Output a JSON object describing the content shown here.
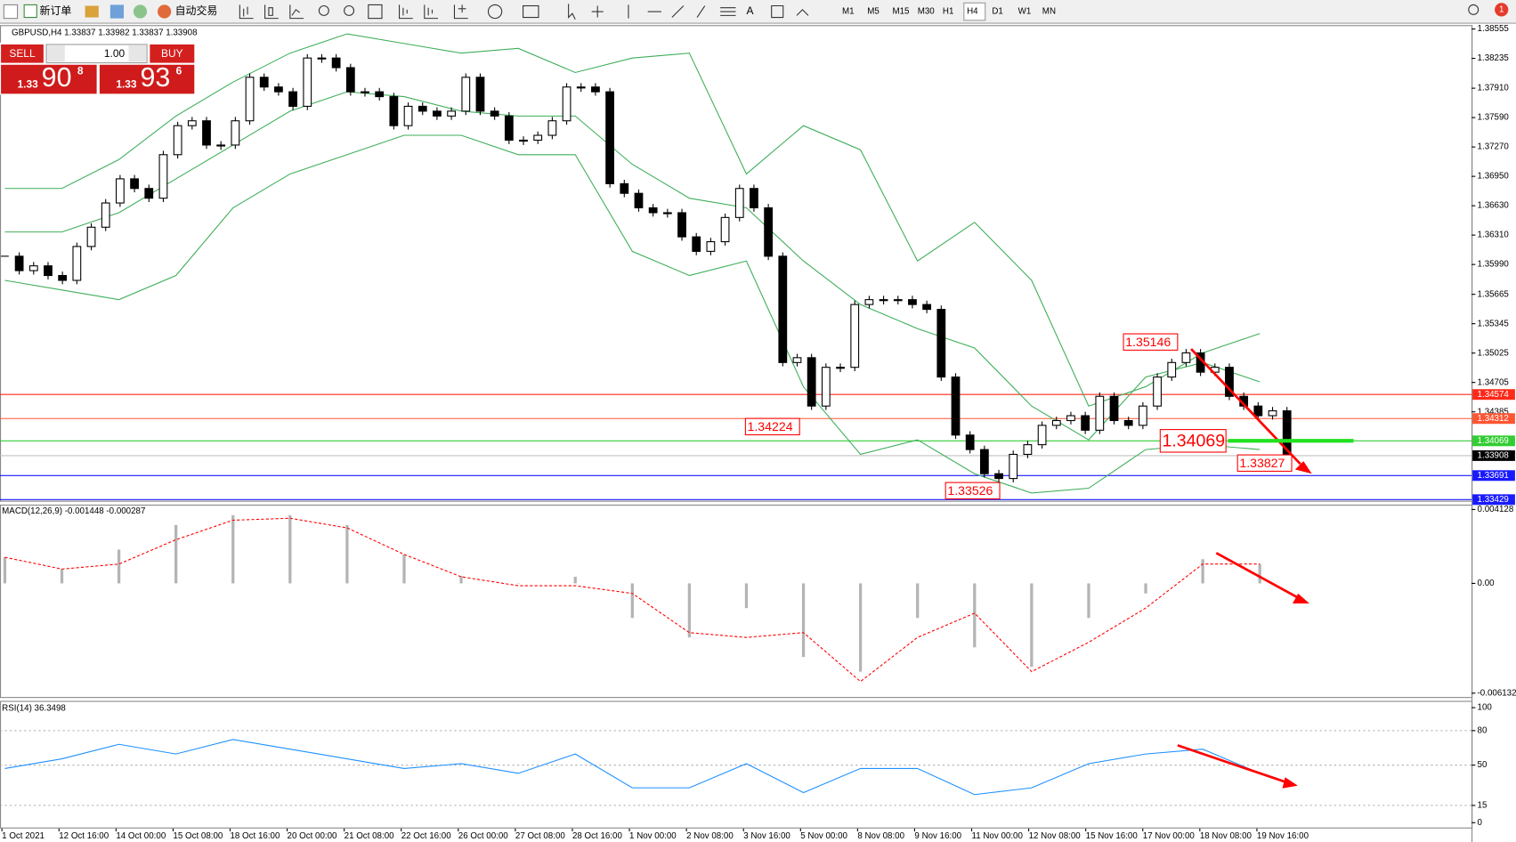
{
  "toolbar": {
    "new_order": "新订单",
    "auto_trading": "自动交易",
    "timeframes": [
      "M1",
      "M5",
      "M15",
      "M30",
      "H1",
      "H4",
      "D1",
      "W1",
      "MN"
    ],
    "active": "H4",
    "notifications": "1"
  },
  "symbol_header": "GBPUSD,H4  1.33837 1.33982 1.33837 1.33908",
  "trade_panel": {
    "sell": "SELL",
    "buy": "BUY",
    "lots": "1.00",
    "sell_price": {
      "prefix": "1.33",
      "big": "90",
      "sup": "8"
    },
    "buy_price": {
      "prefix": "1.33",
      "big": "93",
      "sup": "6"
    }
  },
  "chart_data": [
    {
      "type": "candlestick",
      "categories": [
        "1 Oct 2021",
        "12 Oct 16:00",
        "14 Oct 00:00",
        "15 Oct 08:00",
        "18 Oct 16:00",
        "20 Oct 00:00",
        "21 Oct 08:00",
        "22 Oct 16:00",
        "26 Oct 00:00",
        "27 Oct 08:00",
        "28 Oct 16:00",
        "1 Nov 00:00",
        "2 Nov 08:00",
        "3 Nov 16:00",
        "5 Nov 00:00",
        "8 Nov 08:00",
        "9 Nov 16:00",
        "11 Nov 00:00",
        "12 Nov 08:00",
        "15 Nov 16:00",
        "17 Nov 00:00",
        "18 Nov 08:00",
        "19 Nov 16:00"
      ],
      "closes": [
        1.3608,
        1.35923,
        1.35975,
        1.3587,
        1.35817,
        1.36186,
        1.36396,
        1.3666,
        1.36923,
        1.36818,
        1.36712,
        1.37186,
        1.37502,
        1.37555,
        1.37291,
        1.37291,
        1.37555,
        1.38029,
        1.37923,
        1.37871,
        1.37713,
        1.38239,
        1.38239,
        1.38134,
        1.37871,
        1.37871,
        1.37818,
        1.37502,
        1.37713,
        1.3766,
        1.37607,
        1.3766,
        1.38029,
        1.3766,
        1.37607,
        1.37344,
        1.37344,
        1.37397,
        1.37555,
        1.37923,
        1.37923,
        1.37871,
        1.3687,
        1.36765,
        1.36607,
        1.36554,
        1.36554,
        1.36291,
        1.36133,
        1.36238,
        1.36502,
        1.36818,
        1.36607,
        1.3608,
        1.34922,
        1.34975,
        1.34448,
        1.3487,
        1.3487,
        1.35554,
        1.35607,
        1.35607,
        1.35607,
        1.35554,
        1.35501,
        1.34764,
        1.34132,
        1.33974,
        1.33711,
        1.33659,
        1.33922,
        1.34027,
        1.34238,
        1.3429,
        1.34343,
        1.34185,
        1.34554,
        1.3429,
        1.34238,
        1.34448,
        1.34764,
        1.34922,
        1.35027,
        1.34817,
        1.3487,
        1.34554,
        1.34448,
        1.34343,
        1.34396,
        1.33922
      ],
      "candle_colors": {
        "up": "#ffffff",
        "down": "#000000",
        "border": "#000000"
      },
      "series": [
        {
          "color": "#3fae5a",
          "values": [
            1.36818,
            1.36818,
            1.37133,
            1.37607,
            1.37976,
            1.38292,
            1.38502,
            1.38397,
            1.38292,
            1.38344,
            1.38081,
            1.38239,
            1.38292,
            1.36976,
            1.37502,
            1.37239,
            1.36028,
            1.36449,
            1.35817,
            1.34448,
            1.34659,
            1.35027,
            1.35238
          ]
        },
        {
          "color": "#3fae5a",
          "values": [
            1.36344,
            1.36344,
            1.36554,
            1.36923,
            1.37291,
            1.3766,
            1.37871,
            1.37818,
            1.3766,
            1.37607,
            1.37607,
            1.37081,
            1.36712,
            1.36607,
            1.36028,
            1.35554,
            1.35291,
            1.3508,
            1.34448,
            1.3408,
            1.34764,
            1.34922,
            1.34712
          ]
        },
        {
          "color": "#3fae5a",
          "values": [
            1.35817,
            1.35712,
            1.35607,
            1.3587,
            1.36607,
            1.36976,
            1.37186,
            1.37397,
            1.37397,
            1.37186,
            1.37186,
            1.36133,
            1.3587,
            1.36028,
            1.34659,
            1.33922,
            1.3408,
            1.33711,
            1.33501,
            1.33553,
            1.33974,
            1.34027,
            1.33974
          ]
        }
      ],
      "ylim": [
        1.33406,
        1.38597
      ],
      "yticks": [
        1.38555,
        1.38235,
        {
          "value": 1.3791,
          "label": "1.37910"
        },
        {
          "value": 1.3759,
          "label": "1.37590"
        },
        {
          "value": 1.3727,
          "label": "1.37270"
        },
        {
          "value": 1.3695,
          "label": "1.36950"
        },
        {
          "value": 1.3663,
          "label": "1.36630"
        },
        {
          "value": 1.3631,
          "label": "1.36310"
        },
        {
          "value": 1.3599,
          "label": "1.35990"
        },
        1.35665,
        1.35345,
        1.35025,
        1.34705,
        1.34385
      ],
      "levels": [
        {
          "value": 1.34574,
          "color": "#ff2a1a",
          "label_color": "#ffffff"
        },
        {
          "value": 1.34312,
          "color": "#ff5533",
          "label_color": "#ffffff"
        },
        {
          "value": 1.34069,
          "color": "#32cd32",
          "label_color": "#ffffff"
        },
        {
          "value": 1.33908,
          "color": "#c0c0c0",
          "label_color": "#ffffff",
          "label_bg": "#000000"
        },
        {
          "value": 1.33691,
          "color": "#1a1aff",
          "label_color": "#ffffff"
        },
        {
          "value": 1.33429,
          "color": "#1a1aff",
          "label_color": "#ffffff"
        }
      ],
      "annotations": [
        1.35146,
        1.34224,
        1.33526,
        1.34069,
        1.33827
      ],
      "annotation_color": "#ff0000"
    },
    {
      "type": "macd",
      "label": "MACD(12,26,9) -0.001448 -0.000287",
      "histogram": {
        "color": "#b4b4b4",
        "values": [
          0.00146,
          0.0008,
          0.00189,
          0.00326,
          0.00381,
          0.00381,
          0.00326,
          0.00162,
          0.00042,
          -2e-05,
          0.00037,
          -0.00193,
          -0.00302,
          -0.00138,
          -0.00411,
          -0.00493,
          -0.00193,
          -0.00357,
          -0.00466,
          -0.00193,
          -0.00056,
          0.00135,
          0.00108
        ]
      },
      "signal": {
        "color": "#ff0000",
        "values": [
          0.00146,
          0.0008,
          0.00108,
          0.00244,
          0.00353,
          0.00364,
          0.0031,
          0.00162,
          0.00037,
          -0.00013,
          -0.00013,
          -0.00056,
          -0.00275,
          -0.00302,
          -0.00275,
          -0.00548,
          -0.00302,
          -0.00166,
          -0.00493,
          -0.00329,
          -0.00138,
          0.00108,
          0.00108
        ]
      },
      "ylim": [
        -0.0064,
        0.0044
      ],
      "yticks": [
        0.004128,
        {
          "value": 0,
          "label": "0.00"
        },
        -0.006132
      ]
    },
    {
      "type": "line",
      "label": "RSI(14) 36.3498",
      "color": "#1e90ff",
      "values": [
        47.1,
        55.5,
        68.1,
        59.7,
        72.3,
        63.9,
        55.5,
        47.1,
        51.3,
        42.9,
        59.7,
        30.3,
        30.3,
        51.3,
        26.1,
        47.1,
        47.1,
        24.4,
        30.3,
        51.3,
        59.7,
        63.9,
        42.9
      ],
      "ylim": [
        0,
        100
      ],
      "yticks": [
        100,
        80,
        50,
        15,
        0
      ],
      "grid": [
        80,
        50,
        15
      ]
    }
  ]
}
